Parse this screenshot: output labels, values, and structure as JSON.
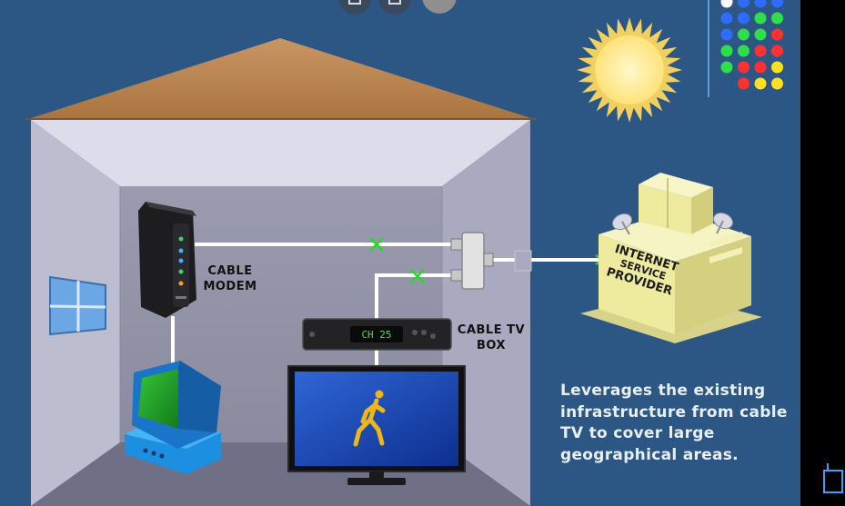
{
  "labels": {
    "cable_modem": "CABLE\nMODEM",
    "cable_tv_box": "CABLE TV\nBOX",
    "isp_line1": "INTERNET",
    "isp_line2": "SERVICE",
    "isp_line3": "PROVIDER",
    "tv_box_display": "CH 25"
  },
  "caption": "Leverages the existing infrastructure from cable TV to cover large geographical areas.",
  "colors": {
    "background": "#2c5684",
    "roof": "#b88450",
    "wall": "#b4b4c8",
    "cable": "#ffffff",
    "connection_mark": "#22dd22",
    "isp_building": "#eeea9e",
    "sun": "#ffe98a"
  }
}
